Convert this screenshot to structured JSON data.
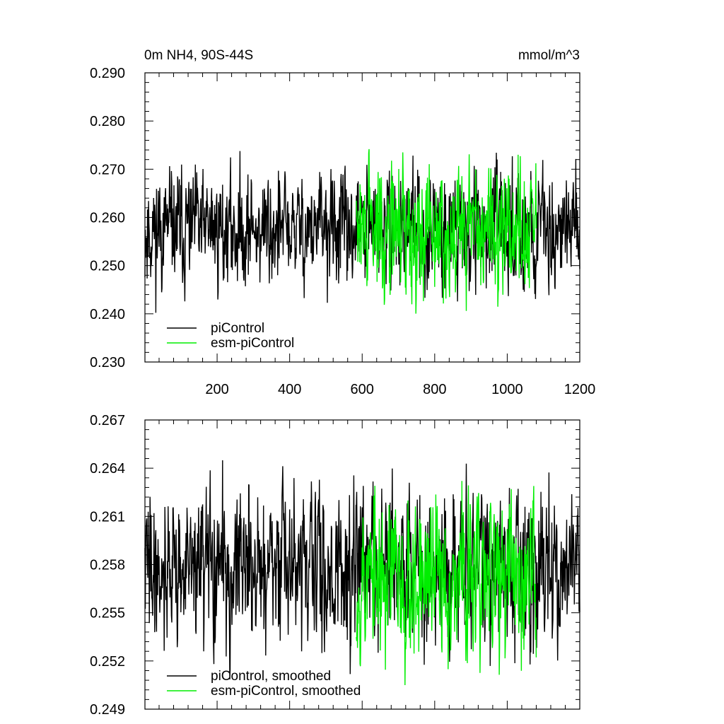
{
  "chart_data": [
    {
      "type": "line",
      "title_left": "0m NH4, 90S-44S",
      "title_right": "mmol/m^3",
      "xlabel": "",
      "ylabel": "",
      "xlim": [
        1,
        1200
      ],
      "ylim": [
        0.23,
        0.29
      ],
      "x_ticks": [
        200,
        400,
        600,
        800,
        1000,
        1200
      ],
      "x_tick_labels": [
        "200",
        "400",
        "600",
        "800",
        "1000",
        "1200"
      ],
      "y_ticks": [
        0.23,
        0.24,
        0.25,
        0.26,
        0.27,
        0.28,
        0.29
      ],
      "y_tick_labels": [
        "0.230",
        "0.240",
        "0.250",
        "0.260",
        "0.270",
        "0.280",
        "0.290"
      ],
      "grid": false,
      "legend_position": "bottom-left",
      "series": [
        {
          "name": "piControl",
          "color": "#000000",
          "x_range": [
            1,
            1200
          ],
          "mean": 0.2575,
          "noise_sd": 0.0065,
          "min": 0.2375,
          "max": 0.2805,
          "seed": 11
        },
        {
          "name": "esm-piControl",
          "color": "#00ee00",
          "x_range": [
            584,
            1080
          ],
          "mean": 0.2575,
          "noise_sd": 0.0072,
          "min": 0.2385,
          "max": 0.2795,
          "seed": 29
        }
      ]
    },
    {
      "type": "line",
      "title_left": "",
      "title_right": "",
      "xlabel": "",
      "ylabel": "",
      "xlim": [
        1,
        1200
      ],
      "ylim": [
        0.249,
        0.267
      ],
      "x_ticks": [
        200,
        400,
        600,
        800,
        1000,
        1200
      ],
      "x_tick_labels": [],
      "y_ticks": [
        0.249,
        0.252,
        0.255,
        0.258,
        0.261,
        0.264,
        0.267
      ],
      "y_tick_labels": [
        "0.249",
        "0.252",
        "0.255",
        "0.258",
        "0.261",
        "0.264",
        "0.267"
      ],
      "grid": false,
      "legend_position": "bottom-left",
      "series": [
        {
          "name": "piControl, smoothed",
          "color": "#000000",
          "x_range": [
            1,
            1200
          ],
          "mean": 0.2578,
          "noise_sd": 0.0026,
          "min": 0.2497,
          "max": 0.2666,
          "seed": 41
        },
        {
          "name": "esm-piControl, smoothed",
          "color": "#00ee00",
          "x_range": [
            584,
            1080
          ],
          "mean": 0.2572,
          "noise_sd": 0.0028,
          "min": 0.2499,
          "max": 0.2632,
          "seed": 53
        }
      ]
    }
  ]
}
